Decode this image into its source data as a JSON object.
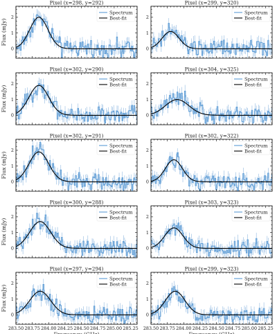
{
  "colors": {
    "spectrum": "#5b9bd5",
    "bestfit": "#000000",
    "errorbar": "#8fb8e0"
  },
  "figure": {
    "xlabel": "Frequency (GHz)",
    "ylabel": "Flux (mJy)",
    "legend": {
      "spectrum": "Spectrum",
      "bestfit": "Best-fit"
    }
  },
  "chart_data": [
    {
      "type": "line",
      "title": "Pixel (x=298, y=292)",
      "xlabel": "",
      "ylabel": "Flux (mJy)",
      "xlim": [
        283.5,
        285.35
      ],
      "ylim": [
        -0.6,
        2.7
      ],
      "yticks": [
        0,
        1,
        2
      ],
      "legend": "top-right",
      "series": [
        {
          "name": "Spectrum",
          "kind": "noisy-steps"
        },
        {
          "name": "Best-fit",
          "kind": "gaussian",
          "center": 283.85,
          "amplitude": 2.0,
          "sigma": 0.14,
          "baseline": 0.0
        }
      ]
    },
    {
      "type": "line",
      "title": "Pixel (x=299, y=320)",
      "xlabel": "",
      "ylabel": "",
      "xlim": [
        283.5,
        285.35
      ],
      "ylim": [
        -0.6,
        2.7
      ],
      "yticks": [
        0,
        1,
        2
      ],
      "legend": "top-right",
      "series": [
        {
          "name": "Spectrum",
          "kind": "noisy-steps"
        },
        {
          "name": "Best-fit",
          "kind": "gaussian",
          "center": 283.8,
          "amplitude": 1.1,
          "sigma": 0.13,
          "baseline": 0.0
        }
      ]
    },
    {
      "type": "line",
      "title": "Pixel (x=302, y=290)",
      "xlabel": "",
      "ylabel": "Flux (mJy)",
      "xlim": [
        283.5,
        285.35
      ],
      "ylim": [
        -0.6,
        2.7
      ],
      "yticks": [
        0,
        1,
        2
      ],
      "legend": "top-right",
      "series": [
        {
          "name": "Spectrum",
          "kind": "noisy-steps"
        },
        {
          "name": "Best-fit",
          "kind": "gaussian",
          "center": 283.85,
          "amplitude": 1.9,
          "sigma": 0.15,
          "baseline": 0.0
        }
      ]
    },
    {
      "type": "line",
      "title": "Pixel (x=304, y=325)",
      "xlabel": "",
      "ylabel": "",
      "xlim": [
        283.5,
        285.35
      ],
      "ylim": [
        -0.6,
        2.7
      ],
      "yticks": [
        0,
        1,
        2
      ],
      "legend": "top-right",
      "series": [
        {
          "name": "Spectrum",
          "kind": "noisy-steps"
        },
        {
          "name": "Best-fit",
          "kind": "gaussian",
          "center": 283.9,
          "amplitude": 1.0,
          "sigma": 0.18,
          "baseline": 0.0
        }
      ]
    },
    {
      "type": "line",
      "title": "Pixel (x=302, y=291)",
      "xlabel": "",
      "ylabel": "Flux (mJy)",
      "xlim": [
        283.5,
        285.35
      ],
      "ylim": [
        -0.6,
        2.7
      ],
      "yticks": [
        0,
        1,
        2
      ],
      "legend": "top-right",
      "series": [
        {
          "name": "Spectrum",
          "kind": "noisy-steps"
        },
        {
          "name": "Best-fit",
          "kind": "gaussian",
          "center": 283.85,
          "amplitude": 1.9,
          "sigma": 0.15,
          "baseline": 0.0
        }
      ]
    },
    {
      "type": "line",
      "title": "Pixel (x=302, y=322)",
      "xlabel": "",
      "ylabel": "",
      "xlim": [
        283.5,
        285.35
      ],
      "ylim": [
        -0.6,
        2.7
      ],
      "yticks": [
        0,
        1,
        2
      ],
      "legend": "top-right",
      "series": [
        {
          "name": "Spectrum",
          "kind": "noisy-steps"
        },
        {
          "name": "Best-fit",
          "kind": "gaussian",
          "center": 283.85,
          "amplitude": 1.4,
          "sigma": 0.13,
          "baseline": 0.0
        }
      ]
    },
    {
      "type": "line",
      "title": "Pixel (x=300, y=288)",
      "xlabel": "",
      "ylabel": "Flux (mJy)",
      "xlim": [
        283.5,
        285.35
      ],
      "ylim": [
        -0.6,
        2.7
      ],
      "yticks": [
        0,
        1,
        2
      ],
      "legend": "top-right",
      "series": [
        {
          "name": "Spectrum",
          "kind": "noisy-steps"
        },
        {
          "name": "Best-fit",
          "kind": "gaussian",
          "center": 283.87,
          "amplitude": 1.7,
          "sigma": 0.16,
          "baseline": 0.0
        }
      ]
    },
    {
      "type": "line",
      "title": "Pixel (x=303, y=323)",
      "xlabel": "",
      "ylabel": "",
      "xlim": [
        283.5,
        285.35
      ],
      "ylim": [
        -0.6,
        2.7
      ],
      "yticks": [
        0,
        1,
        2
      ],
      "legend": "top-right",
      "series": [
        {
          "name": "Spectrum",
          "kind": "noisy-steps"
        },
        {
          "name": "Best-fit",
          "kind": "gaussian",
          "center": 283.85,
          "amplitude": 1.3,
          "sigma": 0.14,
          "baseline": 0.0
        }
      ]
    },
    {
      "type": "line",
      "title": "Pixel (x=297, y=294)",
      "xlabel": "Frequency (GHz)",
      "ylabel": "Flux (mJy)",
      "xlim": [
        283.5,
        285.35
      ],
      "ylim": [
        -0.6,
        2.7
      ],
      "yticks": [
        0,
        1,
        2
      ],
      "xticks": [
        "283.50",
        "283.75",
        "284.00",
        "284.25",
        "284.50",
        "284.75",
        "285.00",
        "285.25"
      ],
      "legend": "top-right",
      "series": [
        {
          "name": "Spectrum",
          "kind": "noisy-steps"
        },
        {
          "name": "Best-fit",
          "kind": "gaussian",
          "center": 283.87,
          "amplitude": 1.5,
          "sigma": 0.16,
          "baseline": 0.0
        }
      ]
    },
    {
      "type": "line",
      "title": "Pixel (x=299, y=323)",
      "xlabel": "Frequency (GHz)",
      "ylabel": "",
      "xlim": [
        283.5,
        285.35
      ],
      "ylim": [
        -0.6,
        2.7
      ],
      "yticks": [
        0,
        1,
        2
      ],
      "xticks": [
        "283.50",
        "283.75",
        "284.00",
        "284.25",
        "284.50",
        "284.75",
        "285.00",
        "285.25"
      ],
      "legend": "top-right",
      "series": [
        {
          "name": "Spectrum",
          "kind": "noisy-steps"
        },
        {
          "name": "Best-fit",
          "kind": "gaussian",
          "center": 283.87,
          "amplitude": 1.5,
          "sigma": 0.15,
          "baseline": 0.0
        }
      ]
    }
  ]
}
